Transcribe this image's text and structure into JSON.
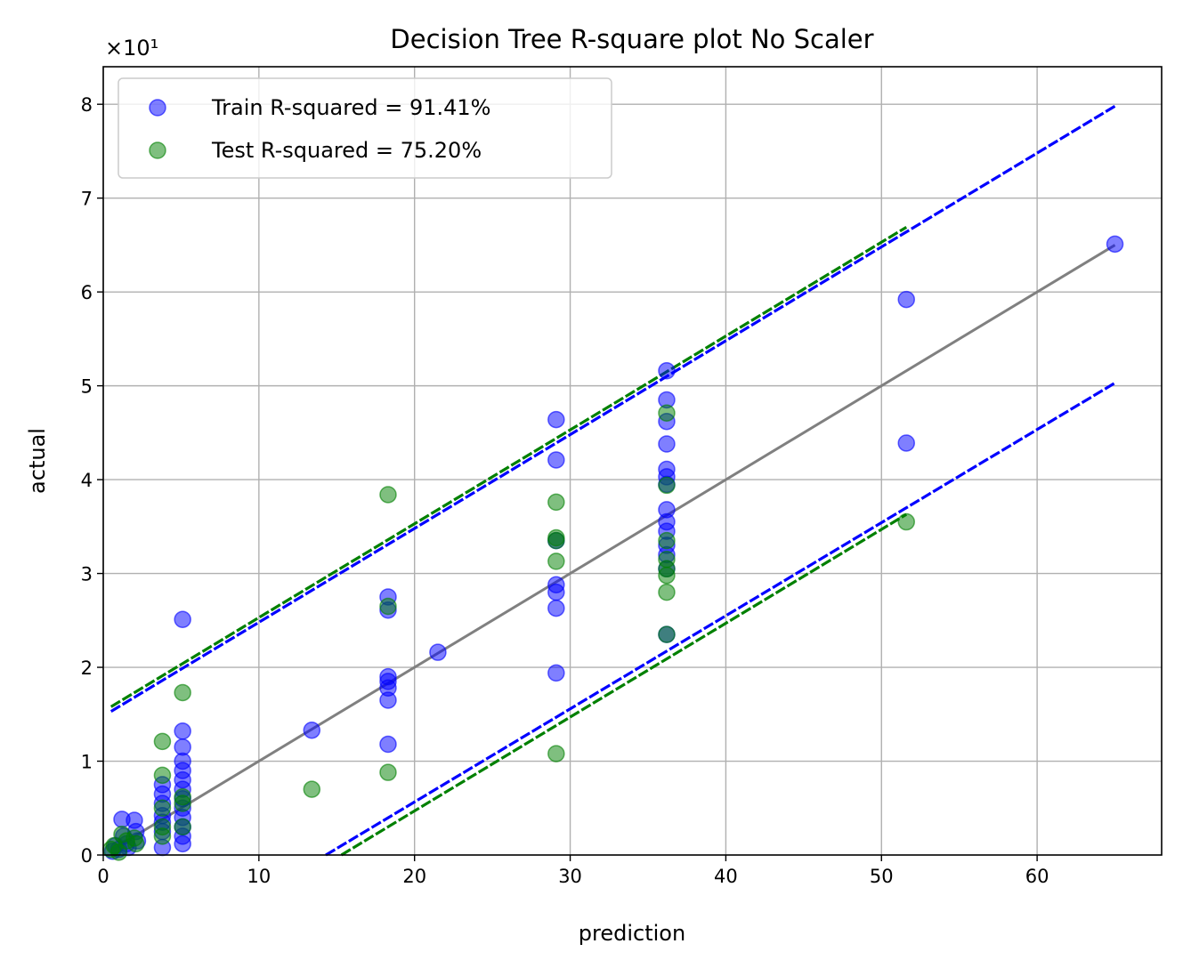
{
  "chart_data": {
    "type": "scatter",
    "title": "Decision Tree R-square plot No Scaler",
    "xlabel": "prediction",
    "ylabel": "actual",
    "y_offset_label": "×10¹",
    "xlim": [
      0,
      68
    ],
    "ylim": [
      0,
      84
    ],
    "x_ticks": [
      0,
      10,
      20,
      30,
      40,
      50,
      60
    ],
    "x_tick_labels": [
      "0",
      "10",
      "20",
      "30",
      "40",
      "50",
      "60"
    ],
    "y_ticks": [
      0,
      10,
      20,
      30,
      40,
      50,
      60,
      70,
      80
    ],
    "y_tick_labels": [
      "0",
      "1",
      "2",
      "3",
      "4",
      "5",
      "6",
      "7",
      "8"
    ],
    "grid": true,
    "legend_position": "top-left",
    "series": [
      {
        "name": "Train R-squared = 91.41%",
        "color": "#0000ff",
        "points": [
          [
            0.6,
            0.4
          ],
          [
            0.8,
            1.0
          ],
          [
            1.0,
            0.6
          ],
          [
            1.2,
            3.8
          ],
          [
            1.3,
            2.0
          ],
          [
            1.5,
            1.2
          ],
          [
            1.6,
            0.8
          ],
          [
            2.0,
            3.7
          ],
          [
            2.1,
            2.5
          ],
          [
            2.2,
            1.5
          ],
          [
            3.8,
            0.8
          ],
          [
            3.8,
            2.5
          ],
          [
            3.8,
            3.5
          ],
          [
            3.8,
            4.2
          ],
          [
            3.8,
            5.5
          ],
          [
            3.8,
            6.5
          ],
          [
            3.8,
            7.5
          ],
          [
            5.1,
            1.2
          ],
          [
            5.1,
            2.0
          ],
          [
            5.1,
            3.0
          ],
          [
            5.1,
            4.0
          ],
          [
            5.1,
            5.0
          ],
          [
            5.1,
            6.0
          ],
          [
            5.1,
            7.0
          ],
          [
            5.1,
            8.0
          ],
          [
            5.1,
            9.0
          ],
          [
            5.1,
            10.0
          ],
          [
            5.1,
            11.5
          ],
          [
            5.1,
            13.2
          ],
          [
            5.1,
            25.1
          ],
          [
            13.4,
            13.3
          ],
          [
            18.3,
            11.8
          ],
          [
            18.3,
            16.5
          ],
          [
            18.3,
            17.8
          ],
          [
            18.3,
            18.5
          ],
          [
            18.3,
            19.0
          ],
          [
            18.3,
            26.1
          ],
          [
            18.3,
            27.5
          ],
          [
            21.5,
            21.6
          ],
          [
            29.1,
            19.4
          ],
          [
            29.1,
            26.3
          ],
          [
            29.1,
            28.0
          ],
          [
            29.1,
            28.8
          ],
          [
            29.1,
            33.5
          ],
          [
            29.1,
            42.1
          ],
          [
            29.1,
            46.4
          ],
          [
            36.2,
            23.5
          ],
          [
            36.2,
            30.5
          ],
          [
            36.2,
            32.0
          ],
          [
            36.2,
            33.0
          ],
          [
            36.2,
            34.5
          ],
          [
            36.2,
            35.5
          ],
          [
            36.2,
            36.8
          ],
          [
            36.2,
            39.5
          ],
          [
            36.2,
            40.3
          ],
          [
            36.2,
            41.1
          ],
          [
            36.2,
            43.8
          ],
          [
            36.2,
            46.2
          ],
          [
            36.2,
            48.5
          ],
          [
            36.2,
            51.6
          ],
          [
            51.6,
            43.9
          ],
          [
            51.6,
            59.2
          ],
          [
            65.0,
            65.1
          ]
        ]
      },
      {
        "name": "Test R-squared = 75.20%",
        "color": "#008000",
        "points": [
          [
            0.5,
            0.6
          ],
          [
            0.7,
            1.0
          ],
          [
            1.0,
            0.3
          ],
          [
            1.2,
            2.2
          ],
          [
            1.5,
            1.5
          ],
          [
            2.0,
            1.8
          ],
          [
            2.1,
            1.2
          ],
          [
            3.8,
            2.0
          ],
          [
            3.8,
            3.0
          ],
          [
            3.8,
            5.0
          ],
          [
            3.8,
            8.5
          ],
          [
            3.8,
            12.1
          ],
          [
            5.1,
            3.0
          ],
          [
            5.1,
            5.5
          ],
          [
            5.1,
            6.2
          ],
          [
            5.1,
            17.3
          ],
          [
            13.4,
            7.0
          ],
          [
            18.3,
            8.8
          ],
          [
            18.3,
            26.5
          ],
          [
            18.3,
            38.4
          ],
          [
            29.1,
            10.8
          ],
          [
            29.1,
            31.3
          ],
          [
            29.1,
            33.5
          ],
          [
            29.1,
            33.8
          ],
          [
            29.1,
            37.6
          ],
          [
            36.2,
            23.5
          ],
          [
            36.2,
            28.0
          ],
          [
            36.2,
            29.8
          ],
          [
            36.2,
            30.5
          ],
          [
            36.2,
            31.5
          ],
          [
            36.2,
            33.5
          ],
          [
            36.2,
            39.4
          ],
          [
            36.2,
            47.1
          ],
          [
            51.6,
            35.5
          ]
        ]
      }
    ],
    "lines": [
      {
        "name": "",
        "color": "#808080",
        "style": "solid",
        "x": [
          0.5,
          65.0
        ],
        "y": [
          0.5,
          65.0
        ]
      },
      {
        "name": "",
        "color": "#0000ff",
        "style": "dashed",
        "x": [
          0.5,
          65.0
        ],
        "y": [
          15.3,
          79.8
        ]
      },
      {
        "name": "",
        "color": "#0000ff",
        "style": "dashed",
        "x": [
          14.3,
          65.0
        ],
        "y": [
          0.0,
          50.3
        ]
      },
      {
        "name": "",
        "color": "#008000",
        "style": "dashed",
        "x": [
          0.5,
          51.6
        ],
        "y": [
          15.8,
          66.9
        ]
      },
      {
        "name": "",
        "color": "#008000",
        "style": "dashed",
        "x": [
          15.3,
          51.6
        ],
        "y": [
          0.0,
          36.3
        ]
      }
    ]
  }
}
